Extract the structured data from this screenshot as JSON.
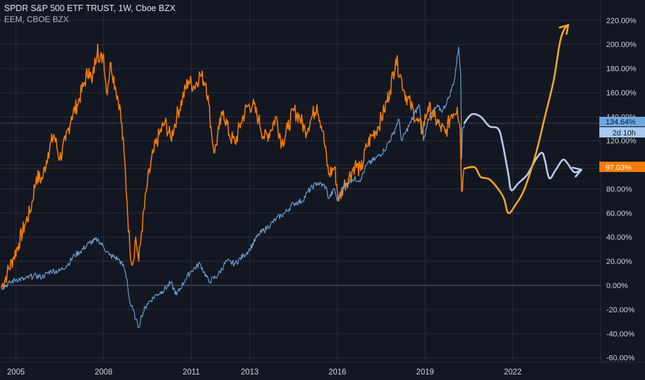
{
  "header": {
    "main_symbol": "SPDR S&P 500 ETF TRUST, 1W, Cboe BZX",
    "compare_symbol": "EEM, CBOE BZX"
  },
  "colors": {
    "background": "#131722",
    "spy_line": "#6ea8de",
    "eem_line": "#f57c00",
    "drawing_blue": "#b7cdf0",
    "drawing_orange": "#f5a623",
    "price_dotted": "#8a8e99"
  },
  "badges": {
    "spy_value": "134.64%",
    "countdown": "2d 10h",
    "eem_value": "97.03%"
  },
  "chart_data": {
    "type": "line",
    "xlabel": "",
    "ylabel": "",
    "x_ticks": [
      "2005",
      "2008",
      "2011",
      "2013",
      "2016",
      "2019",
      "2022"
    ],
    "y_ticks": [
      "220.00%",
      "200.00%",
      "180.00%",
      "160.00%",
      "140.00%",
      "120.00%",
      "100.00%",
      "80.00%",
      "60.00%",
      "40.00%",
      "20.00%",
      "0.00%",
      "-20.00%",
      "-40.00%",
      "-60.00%"
    ],
    "ylim": [
      -60,
      225
    ],
    "xlim": [
      2004.4,
      2025.3
    ],
    "grid": true,
    "series": [
      {
        "name": "SPY",
        "color": "#6ea8de",
        "points": [
          [
            2004.5,
            -2
          ],
          [
            2004.8,
            2
          ],
          [
            2005.0,
            5
          ],
          [
            2005.3,
            5
          ],
          [
            2005.6,
            8
          ],
          [
            2005.9,
            7
          ],
          [
            2006.2,
            12
          ],
          [
            2006.5,
            12
          ],
          [
            2006.8,
            18
          ],
          [
            2007.0,
            25
          ],
          [
            2007.2,
            28
          ],
          [
            2007.5,
            35
          ],
          [
            2007.8,
            38
          ],
          [
            2008.0,
            32
          ],
          [
            2008.2,
            25
          ],
          [
            2008.5,
            22
          ],
          [
            2008.7,
            15
          ],
          [
            2008.8,
            5
          ],
          [
            2008.9,
            -15
          ],
          [
            2009.0,
            -20
          ],
          [
            2009.1,
            -28
          ],
          [
            2009.2,
            -35
          ],
          [
            2009.3,
            -25
          ],
          [
            2009.5,
            -15
          ],
          [
            2009.8,
            -8
          ],
          [
            2010.0,
            -5
          ],
          [
            2010.3,
            2
          ],
          [
            2010.5,
            -8
          ],
          [
            2010.8,
            5
          ],
          [
            2011.0,
            12
          ],
          [
            2011.3,
            18
          ],
          [
            2011.6,
            3
          ],
          [
            2011.9,
            8
          ],
          [
            2012.2,
            20
          ],
          [
            2012.5,
            18
          ],
          [
            2012.8,
            25
          ],
          [
            2013.0,
            30
          ],
          [
            2013.3,
            42
          ],
          [
            2013.6,
            48
          ],
          [
            2013.9,
            55
          ],
          [
            2014.2,
            60
          ],
          [
            2014.5,
            68
          ],
          [
            2014.8,
            70
          ],
          [
            2015.0,
            78
          ],
          [
            2015.3,
            85
          ],
          [
            2015.6,
            82
          ],
          [
            2015.7,
            72
          ],
          [
            2015.9,
            80
          ],
          [
            2016.0,
            70
          ],
          [
            2016.2,
            82
          ],
          [
            2016.5,
            88
          ],
          [
            2016.8,
            88
          ],
          [
            2017.0,
            100
          ],
          [
            2017.3,
            105
          ],
          [
            2017.6,
            112
          ],
          [
            2017.9,
            125
          ],
          [
            2018.1,
            138
          ],
          [
            2018.2,
            120
          ],
          [
            2018.5,
            135
          ],
          [
            2018.8,
            150
          ],
          [
            2018.95,
            120
          ],
          [
            2019.1,
            138
          ],
          [
            2019.4,
            148
          ],
          [
            2019.6,
            145
          ],
          [
            2019.8,
            155
          ],
          [
            2020.0,
            170
          ],
          [
            2020.15,
            198
          ],
          [
            2020.22,
            175
          ],
          [
            2020.25,
            105
          ],
          [
            2020.28,
            130
          ],
          [
            2020.35,
            134.64
          ]
        ]
      },
      {
        "name": "EEM",
        "color": "#f57c00",
        "points": [
          [
            2004.5,
            -2
          ],
          [
            2004.7,
            10
          ],
          [
            2004.9,
            22
          ],
          [
            2005.1,
            35
          ],
          [
            2005.3,
            50
          ],
          [
            2005.5,
            62
          ],
          [
            2005.7,
            90
          ],
          [
            2005.9,
            88
          ],
          [
            2006.1,
            110
          ],
          [
            2006.3,
            125
          ],
          [
            2006.5,
            105
          ],
          [
            2006.7,
            120
          ],
          [
            2006.9,
            140
          ],
          [
            2007.1,
            150
          ],
          [
            2007.3,
            165
          ],
          [
            2007.5,
            180
          ],
          [
            2007.6,
            168
          ],
          [
            2007.8,
            200
          ],
          [
            2007.85,
            185
          ],
          [
            2008.0,
            192
          ],
          [
            2008.1,
            160
          ],
          [
            2008.25,
            185
          ],
          [
            2008.4,
            165
          ],
          [
            2008.55,
            150
          ],
          [
            2008.7,
            110
          ],
          [
            2008.8,
            70
          ],
          [
            2008.9,
            30
          ],
          [
            2009.0,
            18
          ],
          [
            2009.1,
            40
          ],
          [
            2009.2,
            20
          ],
          [
            2009.3,
            45
          ],
          [
            2009.5,
            85
          ],
          [
            2009.7,
            110
          ],
          [
            2009.9,
            125
          ],
          [
            2010.1,
            135
          ],
          [
            2010.3,
            122
          ],
          [
            2010.5,
            140
          ],
          [
            2010.7,
            155
          ],
          [
            2010.9,
            170
          ],
          [
            2011.1,
            165
          ],
          [
            2011.3,
            175
          ],
          [
            2011.5,
            168
          ],
          [
            2011.6,
            150
          ],
          [
            2011.7,
            125
          ],
          [
            2011.8,
            110
          ],
          [
            2011.95,
            130
          ],
          [
            2012.1,
            145
          ],
          [
            2012.3,
            125
          ],
          [
            2012.5,
            118
          ],
          [
            2012.7,
            135
          ],
          [
            2012.9,
            148
          ],
          [
            2013.1,
            150
          ],
          [
            2013.3,
            138
          ],
          [
            2013.5,
            122
          ],
          [
            2013.7,
            128
          ],
          [
            2013.9,
            140
          ],
          [
            2014.1,
            118
          ],
          [
            2014.3,
            130
          ],
          [
            2014.5,
            145
          ],
          [
            2014.7,
            140
          ],
          [
            2014.9,
            128
          ],
          [
            2015.1,
            138
          ],
          [
            2015.3,
            150
          ],
          [
            2015.5,
            128
          ],
          [
            2015.7,
            92
          ],
          [
            2015.9,
            98
          ],
          [
            2016.05,
            70
          ],
          [
            2016.2,
            82
          ],
          [
            2016.4,
            90
          ],
          [
            2016.6,
            100
          ],
          [
            2016.8,
            95
          ],
          [
            2017.0,
            115
          ],
          [
            2017.2,
            125
          ],
          [
            2017.4,
            132
          ],
          [
            2017.6,
            145
          ],
          [
            2017.8,
            162
          ],
          [
            2018.0,
            188
          ],
          [
            2018.15,
            175
          ],
          [
            2018.3,
            160
          ],
          [
            2018.5,
            150
          ],
          [
            2018.7,
            138
          ],
          [
            2018.9,
            128
          ],
          [
            2019.1,
            148
          ],
          [
            2019.3,
            140
          ],
          [
            2019.5,
            132
          ],
          [
            2019.7,
            126
          ],
          [
            2019.9,
            142
          ],
          [
            2020.1,
            148
          ],
          [
            2020.2,
            130
          ],
          [
            2020.25,
            78
          ],
          [
            2020.3,
            90
          ],
          [
            2020.35,
            97.03
          ]
        ]
      }
    ],
    "drawings": [
      {
        "name": "projection-blue",
        "color": "#b7cdf0",
        "points": [
          [
            2020.35,
            135
          ],
          [
            2020.6,
            142
          ],
          [
            2020.9,
            140
          ],
          [
            2021.2,
            132
          ],
          [
            2021.5,
            130
          ],
          [
            2021.65,
            118
          ],
          [
            2021.85,
            92
          ],
          [
            2021.95,
            79
          ],
          [
            2022.2,
            85
          ],
          [
            2022.5,
            92
          ],
          [
            2022.8,
            105
          ],
          [
            2023.0,
            110
          ],
          [
            2023.1,
            104
          ],
          [
            2023.25,
            89
          ],
          [
            2023.45,
            95
          ],
          [
            2023.7,
            104
          ],
          [
            2023.85,
            102
          ],
          [
            2024.1,
            94
          ],
          [
            2024.35,
            96
          ]
        ]
      },
      {
        "name": "projection-orange",
        "color": "#f5a623",
        "points": [
          [
            2020.35,
            97
          ],
          [
            2020.7,
            98
          ],
          [
            2020.9,
            90
          ],
          [
            2021.2,
            88
          ],
          [
            2021.5,
            80
          ],
          [
            2021.7,
            72
          ],
          [
            2021.85,
            60
          ],
          [
            2022.1,
            67
          ],
          [
            2022.4,
            80
          ],
          [
            2022.8,
            110
          ],
          [
            2023.1,
            140
          ],
          [
            2023.4,
            170
          ],
          [
            2023.6,
            200
          ],
          [
            2023.75,
            212
          ],
          [
            2023.9,
            216
          ]
        ]
      }
    ]
  }
}
